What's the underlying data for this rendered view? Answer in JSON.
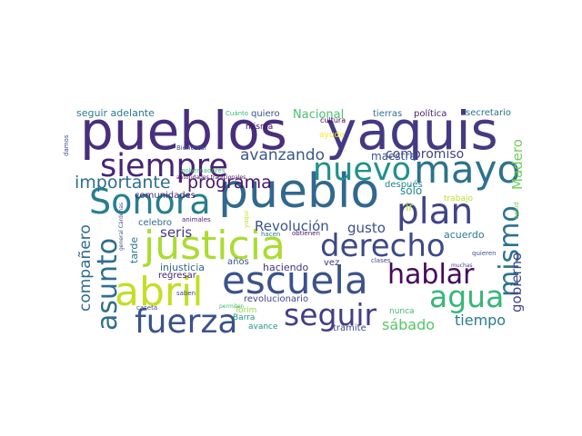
{
  "words": [
    {
      "text": "pueblos",
      "color": "#472f7d"
    },
    {
      "text": "yaquis",
      "color": "#443a83"
    },
    {
      "text": "pueblo",
      "color": "#31688e"
    },
    {
      "text": "justicia",
      "color": "#aadc32"
    },
    {
      "text": "mayo",
      "color": "#2c728e"
    },
    {
      "text": "escuela",
      "color": "#3b528b"
    },
    {
      "text": "abril",
      "color": "#c2df23"
    },
    {
      "text": "siempre",
      "color": "#482475"
    },
    {
      "text": "nuevo",
      "color": "#21918c"
    },
    {
      "text": "plan",
      "color": "#414487"
    },
    {
      "text": "Sonora",
      "color": "#277f8e"
    },
    {
      "text": "derecho",
      "color": "#3e4989"
    },
    {
      "text": "fuerza",
      "color": "#3b528b"
    },
    {
      "text": "seguir",
      "color": "#433e85"
    },
    {
      "text": "agua",
      "color": "#35b779"
    },
    {
      "text": "hablar",
      "color": "#46085c"
    },
    {
      "text": "asunto",
      "color": "#2e6f8e"
    },
    {
      "text": "mismo",
      "color": "#2c728e"
    },
    {
      "text": "programa",
      "color": "#481668"
    },
    {
      "text": "avanzando",
      "color": "#39568c"
    },
    {
      "text": "importante",
      "color": "#2e6e8e"
    },
    {
      "text": "compañero",
      "color": "#2f6b8e"
    },
    {
      "text": "Revolución",
      "color": "#3a538b"
    },
    {
      "text": "seris",
      "color": "#443983"
    },
    {
      "text": "gusto",
      "color": "#3d4e8a"
    },
    {
      "text": "tiempo",
      "color": "#287c8e"
    },
    {
      "text": "sábado",
      "color": "#56c667"
    },
    {
      "text": "gobierno",
      "color": "#404588"
    },
    {
      "text": "Madero",
      "color": "#6ece58"
    },
    {
      "text": "compromiso",
      "color": "#414487"
    },
    {
      "text": "maestra",
      "color": "#3b528b"
    },
    {
      "text": "Nacional",
      "color": "#4ac16d"
    },
    {
      "text": "sólo",
      "color": "#238a8d"
    },
    {
      "text": "ir",
      "color": "#b5de2b"
    },
    {
      "text": "acuerdo",
      "color": "#2a788e"
    },
    {
      "text": "tierras",
      "color": "#2d708e"
    },
    {
      "text": "política",
      "color": "#481f70"
    },
    {
      "text": "secretario",
      "color": "#2d708e"
    },
    {
      "text": "seguir adelante",
      "color": "#2a788e"
    },
    {
      "text": "quiero",
      "color": "#3b528b"
    },
    {
      "text": "comunidades",
      "color": "#482878"
    },
    {
      "text": "después",
      "color": "#26828e"
    },
    {
      "text": "injusticia",
      "color": "#31688e"
    },
    {
      "text": "haciendo",
      "color": "#46337f"
    },
    {
      "text": "tarde",
      "color": "#2a788e"
    },
    {
      "text": "celebro",
      "color": "#31688e"
    },
    {
      "text": "revolucionario",
      "color": "#404688"
    },
    {
      "text": "regresar",
      "color": "#482475"
    },
    {
      "text": "años",
      "color": "#3b528b"
    },
    {
      "text": "vez",
      "color": "#46337f"
    },
    {
      "text": "trámite",
      "color": "#3e4a89"
    },
    {
      "text": "nunca",
      "color": "#3dbc74"
    },
    {
      "text": "misma",
      "color": "#460b5e"
    },
    {
      "text": "trabajo",
      "color": "#bddf26"
    },
    {
      "text": "Tórim",
      "color": "#95d840"
    },
    {
      "text": "Barra",
      "color": "#1f988b"
    },
    {
      "text": "avance",
      "color": "#20928c"
    },
    {
      "text": "ayude",
      "color": "#fde725"
    },
    {
      "text": "cultura",
      "color": "#440154"
    },
    {
      "text": "Cuánto",
      "color": "#35b779"
    },
    {
      "text": "Bienestar",
      "color": "#3b528b"
    },
    {
      "text": "gobernadores",
      "color": "#3dbc74"
    },
    {
      "text": "damos",
      "color": "#3e4989"
    },
    {
      "text": "general Cárdenas",
      "color": "#3e4989"
    },
    {
      "text": "autoridades tradicionales",
      "color": "#46085c"
    },
    {
      "text": "animales",
      "color": "#481f70"
    },
    {
      "text": "yaqui",
      "color": "#c2df23"
    },
    {
      "text": "hacen",
      "color": "#2a788e"
    },
    {
      "text": "obtienen",
      "color": "#481467"
    },
    {
      "text": "clases",
      "color": "#3e4989"
    },
    {
      "text": "quieren",
      "color": "#3b528b"
    },
    {
      "text": "muchas",
      "color": "#3e4989"
    },
    {
      "text": "saben",
      "color": "#3e4989"
    },
    {
      "text": "caseta",
      "color": "#3e4989"
    },
    {
      "text": "permiten",
      "color": "#3dbc74"
    },
    {
      "text": "salud",
      "color": "#6ece58"
    }
  ]
}
